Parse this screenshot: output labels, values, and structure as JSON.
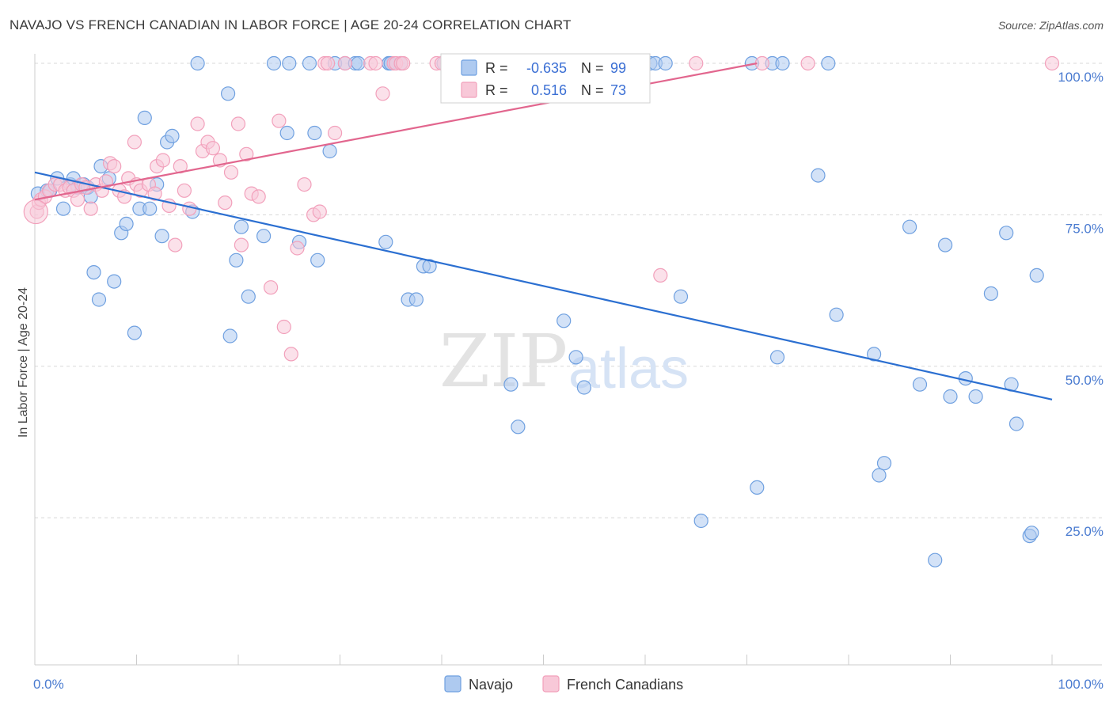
{
  "title": "NAVAJO VS FRENCH CANADIAN IN LABOR FORCE | AGE 20-24 CORRELATION CHART",
  "source": "Source: ZipAtlas.com",
  "watermark": {
    "zip": "ZIP",
    "atlas": "atlas"
  },
  "chart_data": {
    "type": "scatter",
    "ylabel": "In Labor Force | Age 20-24",
    "xlim": [
      0,
      100
    ],
    "ylim": [
      0,
      103
    ],
    "x_tick_labels": [
      "0.0%",
      "100.0%"
    ],
    "y_ticks": [
      {
        "value": 25,
        "label": "25.0%"
      },
      {
        "value": 50,
        "label": "50.0%"
      },
      {
        "value": 75,
        "label": "75.0%"
      },
      {
        "value": 100,
        "label": "100.0%"
      }
    ],
    "grid": "horizontal dashed",
    "legend": {
      "placement": "top-center",
      "rows": [
        {
          "r_label": "R =",
          "r_value": "-0.635",
          "n_label": "N =",
          "n_value": "99"
        },
        {
          "r_label": "R =",
          "r_value": "0.516",
          "n_label": "N =",
          "n_value": "73"
        }
      ]
    },
    "series": [
      {
        "name": "Navajo",
        "color": "#6fa0e0",
        "fill": "#aecaf0",
        "line_color": "#2b6fd1",
        "trend": [
          [
            0,
            82
          ],
          [
            100,
            44.5
          ]
        ],
        "points": [
          [
            0.3,
            78.5
          ],
          [
            1.2,
            79
          ],
          [
            1.5,
            79
          ],
          [
            2.2,
            81
          ],
          [
            2.8,
            76
          ],
          [
            3.5,
            80
          ],
          [
            3.8,
            81
          ],
          [
            4.2,
            79.5
          ],
          [
            4.8,
            80
          ],
          [
            5.2,
            79.5
          ],
          [
            5.5,
            78
          ],
          [
            5.8,
            65.5
          ],
          [
            6.3,
            61
          ],
          [
            6.5,
            83
          ],
          [
            7.3,
            81
          ],
          [
            7.8,
            64
          ],
          [
            8.5,
            72
          ],
          [
            9,
            73.5
          ],
          [
            9.8,
            55.5
          ],
          [
            10.3,
            76
          ],
          [
            10.8,
            91
          ],
          [
            11.3,
            76
          ],
          [
            12,
            80
          ],
          [
            12.5,
            71.5
          ],
          [
            13,
            87
          ],
          [
            13.5,
            88
          ],
          [
            15.5,
            75.5
          ],
          [
            16,
            100
          ],
          [
            19,
            95
          ],
          [
            19.2,
            55
          ],
          [
            19.8,
            67.5
          ],
          [
            20.3,
            73
          ],
          [
            21,
            61.5
          ],
          [
            22.5,
            71.5
          ],
          [
            23.5,
            100
          ],
          [
            24.8,
            88.5
          ],
          [
            25,
            100
          ],
          [
            26,
            70.5
          ],
          [
            27,
            100
          ],
          [
            27.5,
            88.5
          ],
          [
            27.8,
            67.5
          ],
          [
            29,
            85.5
          ],
          [
            29.5,
            100
          ],
          [
            30.5,
            100
          ],
          [
            31.5,
            100
          ],
          [
            31.8,
            100
          ],
          [
            34.5,
            70.5
          ],
          [
            34.8,
            100
          ],
          [
            34.8,
            100
          ],
          [
            35,
            100
          ],
          [
            36,
            100
          ],
          [
            36.7,
            61
          ],
          [
            37.5,
            61
          ],
          [
            38.2,
            66.5
          ],
          [
            38.8,
            66.5
          ],
          [
            40.2,
            100
          ],
          [
            42,
            100
          ],
          [
            44.5,
            100
          ],
          [
            46.8,
            47
          ],
          [
            47.5,
            40
          ],
          [
            51.5,
            100
          ],
          [
            52,
            57.5
          ],
          [
            53.2,
            100
          ],
          [
            53.2,
            51.5
          ],
          [
            54,
            46.5
          ],
          [
            55,
            100
          ],
          [
            55.2,
            100
          ],
          [
            59,
            100
          ],
          [
            60.5,
            100
          ],
          [
            61,
            100
          ],
          [
            62,
            100
          ],
          [
            63.5,
            61.5
          ],
          [
            65.5,
            24.5
          ],
          [
            70.5,
            100
          ],
          [
            71,
            30
          ],
          [
            72.5,
            100
          ],
          [
            73,
            51.5
          ],
          [
            73.5,
            100
          ],
          [
            77,
            81.5
          ],
          [
            78,
            100
          ],
          [
            78.8,
            58.5
          ],
          [
            82.5,
            52
          ],
          [
            83,
            32
          ],
          [
            83.5,
            34
          ],
          [
            86,
            73
          ],
          [
            87,
            47
          ],
          [
            88.5,
            18
          ],
          [
            89.5,
            70
          ],
          [
            90,
            45
          ],
          [
            91.5,
            48
          ],
          [
            92.5,
            45
          ],
          [
            94,
            62
          ],
          [
            95.5,
            72
          ],
          [
            96,
            47
          ],
          [
            96.5,
            40.5
          ],
          [
            97.8,
            22
          ],
          [
            98,
            22.5
          ],
          [
            98.5,
            65
          ]
        ]
      },
      {
        "name": "French Canadians",
        "color": "#f2a0bb",
        "fill": "#f8c8d8",
        "line_color": "#e2668e",
        "trend": [
          [
            0,
            77.5
          ],
          [
            71,
            100
          ]
        ],
        "points": [
          [
            0.2,
            75.5
          ],
          [
            0.4,
            77
          ],
          [
            0.6,
            77.5
          ],
          [
            1,
            78
          ],
          [
            1.4,
            79
          ],
          [
            2,
            80
          ],
          [
            2.5,
            80
          ],
          [
            3,
            79
          ],
          [
            3.4,
            79.5
          ],
          [
            3.8,
            79
          ],
          [
            4.2,
            77.5
          ],
          [
            4.6,
            80
          ],
          [
            5,
            79.5
          ],
          [
            5.5,
            76
          ],
          [
            6,
            80
          ],
          [
            6.6,
            79
          ],
          [
            7,
            80.5
          ],
          [
            7.4,
            83.5
          ],
          [
            7.8,
            83
          ],
          [
            8.3,
            79
          ],
          [
            8.8,
            78
          ],
          [
            9.2,
            81
          ],
          [
            9.8,
            87
          ],
          [
            10,
            80
          ],
          [
            10.4,
            79
          ],
          [
            11.2,
            80
          ],
          [
            11.8,
            78.5
          ],
          [
            12,
            83
          ],
          [
            12.6,
            84
          ],
          [
            13.2,
            76.5
          ],
          [
            13.8,
            70
          ],
          [
            14.3,
            83
          ],
          [
            14.7,
            79
          ],
          [
            15.2,
            76
          ],
          [
            16,
            90
          ],
          [
            16.5,
            85.5
          ],
          [
            17,
            87
          ],
          [
            17.5,
            86
          ],
          [
            18.2,
            84
          ],
          [
            18.7,
            77
          ],
          [
            19.3,
            82
          ],
          [
            20,
            90
          ],
          [
            20.3,
            70
          ],
          [
            20.8,
            85
          ],
          [
            21.3,
            78.5
          ],
          [
            22,
            78
          ],
          [
            23.2,
            63
          ],
          [
            24,
            90.5
          ],
          [
            24.5,
            56.5
          ],
          [
            25.2,
            52
          ],
          [
            25.8,
            69.5
          ],
          [
            26.5,
            80
          ],
          [
            27.4,
            75
          ],
          [
            28,
            75.5
          ],
          [
            28.5,
            100
          ],
          [
            28.8,
            100
          ],
          [
            29.5,
            88.5
          ],
          [
            30.5,
            100
          ],
          [
            33,
            100
          ],
          [
            33.5,
            100
          ],
          [
            34.2,
            95
          ],
          [
            35.3,
            100
          ],
          [
            35.5,
            100
          ],
          [
            36,
            100
          ],
          [
            36.2,
            100
          ],
          [
            39.5,
            100
          ],
          [
            40,
            100
          ],
          [
            43.5,
            100
          ],
          [
            45.5,
            100
          ],
          [
            49.5,
            100
          ],
          [
            50.2,
            100
          ],
          [
            55,
            100
          ],
          [
            61.5,
            65
          ],
          [
            65,
            100
          ],
          [
            71.5,
            100
          ],
          [
            76,
            100
          ],
          [
            100,
            100
          ]
        ]
      }
    ]
  }
}
